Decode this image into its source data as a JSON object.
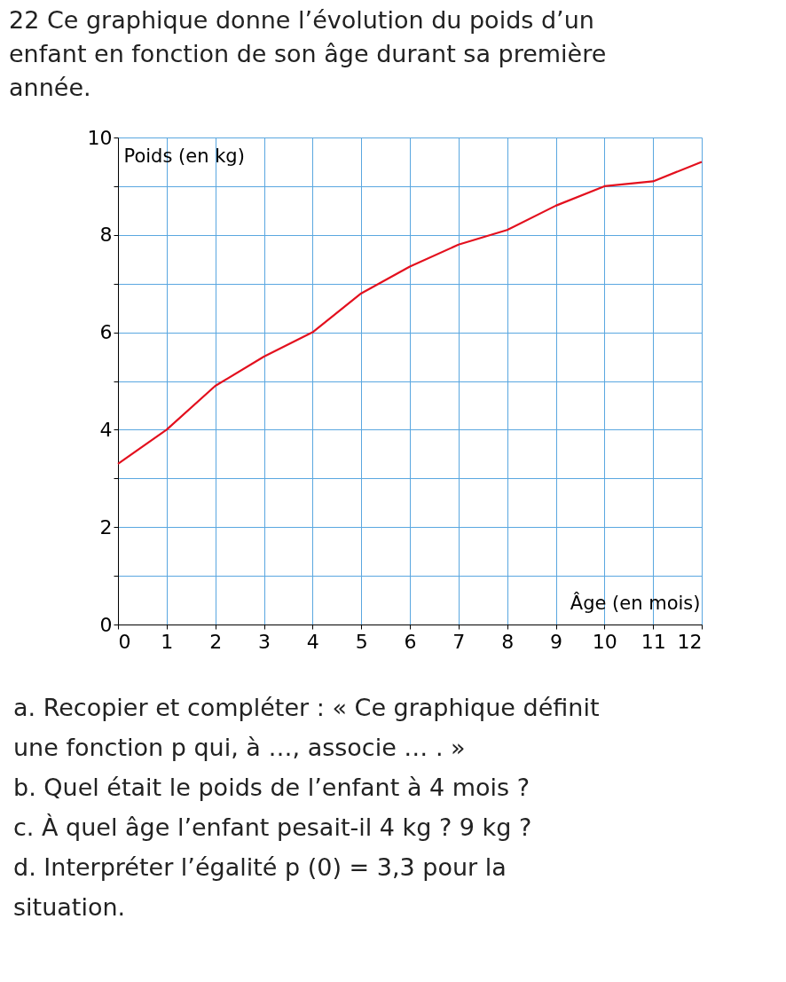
{
  "chart_data": {
    "type": "line",
    "title": "22 Ce graphique donne l’évolution du poids d’un enfant en fonction de son âge durant sa première année.",
    "xlabel": "Âge (en mois)",
    "ylabel": "Poids (en kg)",
    "x": [
      0,
      1,
      2,
      3,
      4,
      5,
      6,
      7,
      8,
      9,
      10,
      11,
      12
    ],
    "series": [
      {
        "color": "#e3101e",
        "values": [
          3.3,
          4.0,
          4.9,
          5.5,
          6.0,
          6.8,
          7.35,
          7.8,
          8.1,
          8.6,
          9.0,
          9.1,
          9.5
        ]
      }
    ],
    "xlim": [
      0,
      12
    ],
    "xticks": [
      0,
      1,
      2,
      3,
      4,
      5,
      6,
      7,
      8,
      9,
      10,
      11,
      12
    ],
    "ylim": [
      0,
      10
    ],
    "yticks": [
      0,
      {
        "value": 1,
        "label": null
      },
      2,
      {
        "value": 3,
        "label": null
      },
      4,
      {
        "value": 5,
        "label": null
      },
      6,
      {
        "value": 7,
        "label": null
      },
      8,
      {
        "value": 9,
        "label": null
      },
      10
    ],
    "grid": true,
    "marker": "none",
    "line_style": "solid",
    "annotations": [
      "a. Recopier et compléter : « Ce graphique définit une fonction p qui, à …, associe … . »",
      "b. Quel était le poids de l’enfant à 4 mois ?",
      "c. À quel âge l’enfant pesait-il 4 kg ? 9 kg ?",
      "d. Interpréter l’égalité p (0) = 3,3 pour la situation."
    ]
  }
}
